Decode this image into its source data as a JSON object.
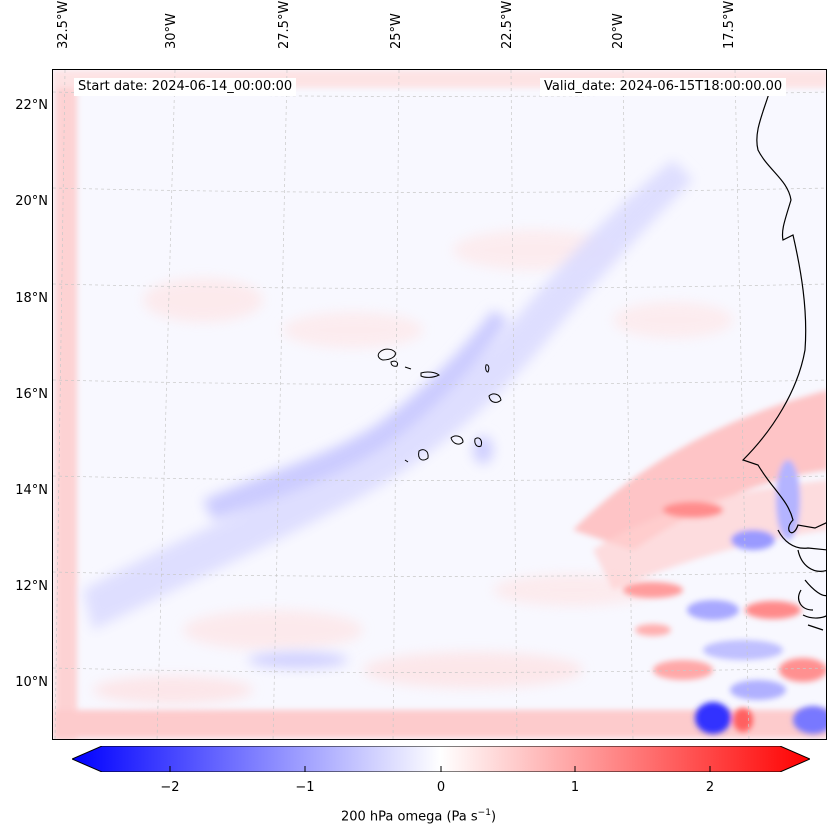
{
  "header": {
    "start_label": "Start date: 2024-06-14_00:00:00",
    "valid_label": "Valid_date: 2024-06-15T18:00:00.00"
  },
  "axes": {
    "lon_labels": [
      "32.5°W",
      "30°W",
      "27.5°W",
      "25°W",
      "22.5°W",
      "20°W",
      "17.5°W"
    ],
    "lat_labels": [
      "22°N",
      "20°N",
      "18°N",
      "16°N",
      "14°N",
      "12°N",
      "10°N"
    ]
  },
  "colorbar": {
    "label": "200 hPa omega (Pa s",
    "label_sup": "−1",
    "label_close": ")",
    "ticks": [
      "−2",
      "−1",
      "0",
      "1",
      "2"
    ],
    "range": [
      -2.6,
      2.6
    ],
    "colors": {
      "neg": "#0000ff",
      "mid": "#ffffff",
      "pos": "#ff0000"
    }
  },
  "map": {
    "field_variable": "omega",
    "level": "200 hPa",
    "background_color": "#f8f8ff",
    "coastline_color": "#000000",
    "gridline_style": "dashed"
  }
}
